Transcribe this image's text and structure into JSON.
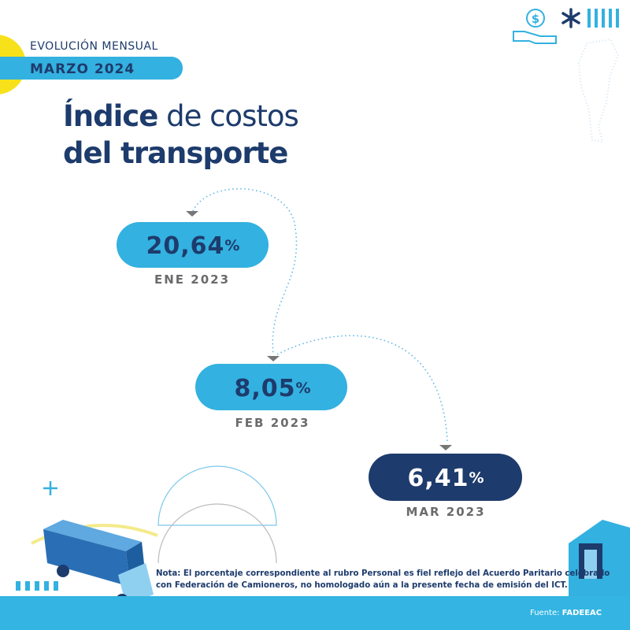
{
  "header": {
    "kicker": "EVOLUCIÓN MENSUAL",
    "period": "MARZO 2024"
  },
  "title": {
    "line1_bold": "Índice",
    "line1_rest": "de costos",
    "line2": "del transporte"
  },
  "items": [
    {
      "value": "20,64",
      "unit": "%",
      "period": "ENE 2023"
    },
    {
      "value": "8,05",
      "unit": "%",
      "period": "FEB 2023"
    },
    {
      "value": "6,41",
      "unit": "%",
      "period": "MAR 2023"
    }
  ],
  "note": {
    "label": "Nota:",
    "line1": "El porcentaje correspondiente al rubro Personal es fiel reflejo del Acuerdo Paritario celebrado",
    "line2": "con Federación de Camioneros, no homologado aún a la presente fecha de emisión del ICT."
  },
  "source": {
    "label": "Fuente:",
    "name": "FADEEAC"
  }
}
